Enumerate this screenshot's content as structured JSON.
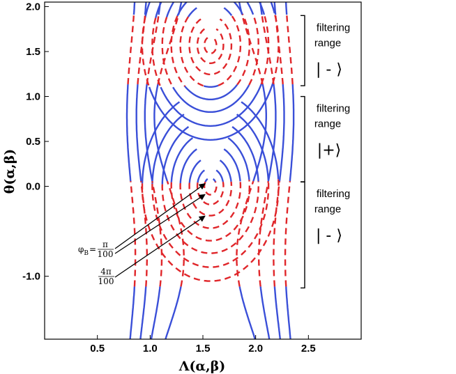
{
  "chart_data": {
    "type": "line",
    "title": "",
    "xlabel": "Λ(α,β)",
    "ylabel": "θ(α,β)",
    "xlim": [
      0.0,
      3.0
    ],
    "ylim": [
      -1.7,
      2.05
    ],
    "x_ticks": [
      {
        "value": 0.5,
        "label": "0.5"
      },
      {
        "value": 1.0,
        "label": "1.0"
      },
      {
        "value": 1.5,
        "label": "1.5"
      },
      {
        "value": 2.0,
        "label": "2.0"
      },
      {
        "value": 2.5,
        "label": "2.5"
      }
    ],
    "y_ticks": [
      {
        "value": -1.0,
        "label": "-1.0"
      },
      {
        "value": 0.0,
        "label": "0.0"
      },
      {
        "value": 0.5,
        "label": "0.5"
      },
      {
        "value": 1.0,
        "label": "1.0"
      },
      {
        "value": 1.5,
        "label": "1.5"
      },
      {
        "value": 2.0,
        "label": "2.0"
      }
    ],
    "grid": false,
    "colors": {
      "solid": "#3a4fd8",
      "dashed": "#e0262a"
    },
    "contour_center_x": 1.571,
    "contour_centers_y": [
      0.0,
      1.571
    ],
    "contour_offsets": [
      0.06,
      0.13,
      0.21,
      0.3,
      0.39,
      0.48,
      0.58,
      0.68
    ],
    "red_band": [
      -1.13,
      0.05,
      1.12,
      1.9
    ],
    "side_lines_x": [
      0.82,
      0.92,
      1.03,
      1.18,
      1.96,
      2.11,
      2.22,
      2.32
    ],
    "side_lines_bulge": [
      -0.04,
      -0.05,
      -0.08,
      -0.14,
      0.14,
      0.08,
      0.05,
      0.04
    ],
    "ranges": [
      {
        "label_line1": "filtering",
        "label_line2": "range",
        "state": "| - ⟩",
        "from": 1.12,
        "to": 1.9
      },
      {
        "label_line1": "filtering",
        "label_line2": "range",
        "state": "|+⟩",
        "from": 0.05,
        "to": 1.0
      },
      {
        "label_line1": "filtering",
        "label_line2": "range",
        "state": "| - ⟩",
        "from": -1.13,
        "to": 0.05
      }
    ],
    "annotations": {
      "phi_symbol": "φ",
      "phi_sub": "B",
      "phi_eq": "=",
      "pi_num": "π",
      "pi_den": "100",
      "frac2_num": "4π",
      "frac2_den": "100",
      "arrow_targets": [
        {
          "x": 1.52,
          "y": 0.03
        },
        {
          "x": 1.52,
          "y": -0.09
        },
        {
          "x": 1.52,
          "y": -0.33
        }
      ]
    }
  }
}
